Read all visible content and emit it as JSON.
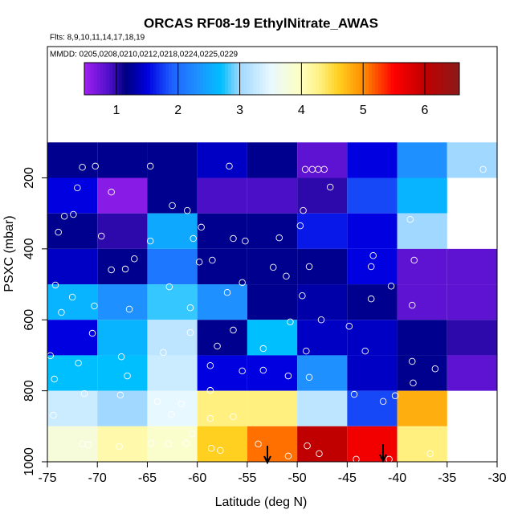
{
  "chart_data": {
    "type": "heatmap",
    "title": "ORCAS RF08-19 EthylNitrate_AWAS",
    "subtitle": "Flts: 8,9,10,11,14,17,18,19",
    "note": "MMDD: 0205,0208,0210,0212,0218,0224,0225,0229",
    "x_label": "Latitude (deg N)",
    "y_label": "PSXC (mbar)",
    "xlim": [
      -75,
      -30
    ],
    "ylim": [
      1000,
      -170
    ],
    "xticks": [
      -75,
      -70,
      -65,
      -60,
      -55,
      -50,
      -45,
      -40,
      -35,
      -30
    ],
    "yticks": [
      200,
      400,
      600,
      800,
      1000
    ],
    "x_bins": [
      -75,
      -70,
      -65,
      -60,
      -55,
      -50,
      -45,
      -40,
      -35,
      -30
    ],
    "y_bins": [
      100,
      200,
      300,
      400,
      500,
      600,
      700,
      800,
      900,
      1000
    ],
    "z": [
      [
        1.2,
        1.2,
        1.2,
        1.4,
        1.2,
        0.8,
        1.5,
        2.3,
        3.0
      ],
      [
        1.5,
        0.6,
        1.2,
        0.9,
        0.9,
        1.0,
        1.8,
        2.6,
        null
      ],
      [
        1.2,
        1.0,
        2.5,
        1.2,
        1.2,
        1.6,
        1.5,
        3.0,
        null
      ],
      [
        1.4,
        1.2,
        2.1,
        1.2,
        1.2,
        1.2,
        1.5,
        0.8,
        0.8
      ],
      [
        2.6,
        2.3,
        2.8,
        2.3,
        1.2,
        1.3,
        1.2,
        0.8,
        0.8
      ],
      [
        1.5,
        2.6,
        3.2,
        1.2,
        2.7,
        1.4,
        1.4,
        1.2,
        1.0
      ],
      [
        2.7,
        2.7,
        3.3,
        1.5,
        1.5,
        2.3,
        1.4,
        1.2,
        0.8
      ],
      [
        3.3,
        3.0,
        3.5,
        4.3,
        4.3,
        3.2,
        1.8,
        4.8,
        null
      ],
      [
        3.8,
        4.1,
        3.9,
        4.6,
        5.1,
        6.0,
        5.6,
        4.3,
        null
      ]
    ],
    "zlim": [
      0.48,
      6.56
    ],
    "zticks": [
      1,
      2,
      3,
      4,
      5,
      6
    ],
    "colorscale": [
      [
        0.48,
        "#a020f0"
      ],
      [
        0.9,
        "#4b0fc8"
      ],
      [
        1.15,
        "#000080"
      ],
      [
        1.5,
        "#0000e0"
      ],
      [
        1.9,
        "#1e60ff"
      ],
      [
        2.3,
        "#1e90ff"
      ],
      [
        2.7,
        "#00bfff"
      ],
      [
        3.0,
        "#a0d8ff"
      ],
      [
        3.5,
        "#e8f8ff"
      ],
      [
        4.0,
        "#ffffc0"
      ],
      [
        4.3,
        "#fff080"
      ],
      [
        4.6,
        "#ffd020"
      ],
      [
        5.0,
        "#ff8c00"
      ],
      [
        5.5,
        "#ff0000"
      ],
      [
        6.0,
        "#c00000"
      ],
      [
        6.56,
        "#8b1a1a"
      ]
    ],
    "points": {
      "x": [
        -71.5,
        -70.2,
        -64.7,
        -56.8,
        -49.2,
        -48.5,
        -47.9,
        -47.3,
        -31.4,
        -72,
        -68.6,
        -62.5,
        -61,
        -49.4,
        -46.7,
        -73.3,
        -72.4,
        -38.7,
        -73.9,
        -69.6,
        -64.7,
        -60.4,
        -56.4,
        -55.2,
        -51.8,
        -49.7,
        -59.6,
        -68.6,
        -67.2,
        -66.3,
        -59.8,
        -58.5,
        -52.4,
        -51.1,
        -48.8,
        -42.4,
        -38.3,
        -42.6,
        -74.2,
        -72.5,
        -70.3,
        -66.8,
        -62.8,
        -60.7,
        -57,
        -55.5,
        -49.5,
        -42.6,
        -40.6,
        -38.5,
        -73.6,
        -56.4,
        -50.7,
        -47.6,
        -44.8,
        -58,
        -74.7,
        -70.5,
        -67.6,
        -63.4,
        -60.7,
        -49.1,
        -43.2,
        -53.4,
        -55.5,
        -74.3,
        -71.9,
        -67,
        -58.7,
        -50.9,
        -48.8,
        -38.5,
        -36.2,
        -38.4,
        -53.4,
        -71.3,
        -67.7,
        -64,
        -61.6,
        -58.7,
        -44.3,
        -41.4,
        -40.2,
        -74.4,
        -62.6,
        -58.7,
        -56.4,
        -71.5,
        -70.9,
        -67.8,
        -64.6,
        -62.9,
        -61.1,
        -58.6,
        -57.7,
        -53.9,
        -50.9,
        -49,
        -47.8,
        -44.1,
        -40.8,
        -36.7,
        -60.5
      ],
      "y": [
        170,
        167,
        167,
        167,
        176,
        176,
        176,
        176,
        176,
        228,
        240,
        278,
        292,
        292,
        226,
        308,
        303,
        317,
        353,
        364,
        378,
        371,
        371,
        378,
        369,
        335,
        339,
        459,
        457,
        428,
        437,
        432,
        452,
        477,
        450,
        419,
        432,
        450,
        502,
        536,
        561,
        570,
        507,
        566,
        523,
        495,
        532,
        541,
        505,
        559,
        579,
        629,
        606,
        600,
        618,
        674,
        701,
        638,
        704,
        692,
        636,
        688,
        688,
        681,
        744,
        767,
        722,
        758,
        729,
        758,
        762,
        717,
        738,
        778,
        742,
        808,
        812,
        830,
        837,
        799,
        810,
        830,
        814,
        869,
        867,
        878,
        873,
        950,
        952,
        957,
        948,
        950,
        948,
        962,
        968,
        950,
        984,
        955,
        977,
        993,
        993,
        977,
        921
      ]
    }
  }
}
